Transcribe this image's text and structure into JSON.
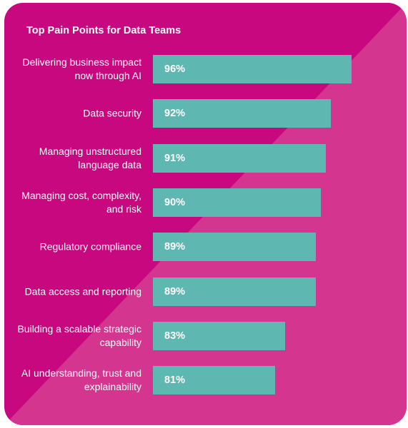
{
  "chart_data": {
    "type": "bar",
    "orientation": "horizontal",
    "title": "Top Pain Points for Data Teams",
    "categories": [
      "Delivering business impact now through AI",
      "Data security",
      "Managing unstructured language data",
      "Managing cost, complexity, and risk",
      "Regulatory compliance",
      "Data access and reporting",
      "Building a scalable strategic capability",
      "AI understanding, trust and explainability"
    ],
    "values": [
      96,
      92,
      91,
      90,
      89,
      89,
      83,
      81
    ],
    "value_labels": [
      "96%",
      "92%",
      "91%",
      "90%",
      "89%",
      "89%",
      "83%",
      "81%"
    ],
    "xlim": [
      57,
      100
    ],
    "grid": false,
    "legend": "none",
    "colors": {
      "background": "#c8087f",
      "background_diagonal": "#d4368f",
      "bar": "#5fb7b1",
      "text": "#ffffff"
    }
  }
}
